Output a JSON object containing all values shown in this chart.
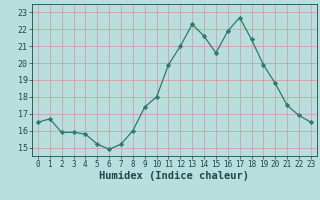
{
  "x": [
    0,
    1,
    2,
    3,
    4,
    5,
    6,
    7,
    8,
    9,
    10,
    11,
    12,
    13,
    14,
    15,
    16,
    17,
    18,
    19,
    20,
    21,
    22,
    23
  ],
  "y": [
    16.5,
    16.7,
    15.9,
    15.9,
    15.8,
    15.2,
    14.9,
    15.2,
    16.0,
    17.4,
    18.0,
    19.9,
    21.0,
    22.3,
    21.6,
    20.6,
    21.9,
    22.7,
    21.4,
    19.9,
    18.8,
    17.5,
    16.9,
    16.5
  ],
  "line_color": "#2d7a6e",
  "marker": "D",
  "marker_size": 2.2,
  "bg_color": "#b8dede",
  "plot_bg_color": "#b8dede",
  "grid_color": "#d4a0a0",
  "tick_color": "#1a4a4a",
  "xlabel": "Humidex (Indice chaleur)",
  "xlabel_fontsize": 7.5,
  "ylim": [
    14.5,
    23.5
  ],
  "xlim": [
    -0.5,
    23.5
  ],
  "yticks": [
    15,
    16,
    17,
    18,
    19,
    20,
    21,
    22,
    23
  ],
  "xticks": [
    0,
    1,
    2,
    3,
    4,
    5,
    6,
    7,
    8,
    9,
    10,
    11,
    12,
    13,
    14,
    15,
    16,
    17,
    18,
    19,
    20,
    21,
    22,
    23
  ]
}
